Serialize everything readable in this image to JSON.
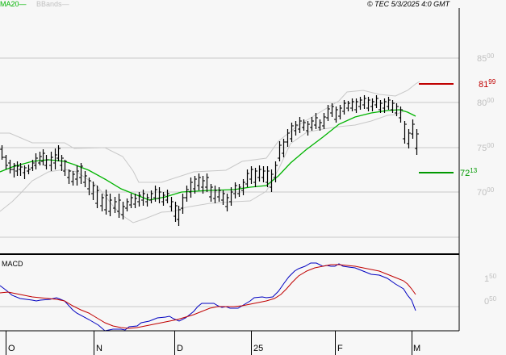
{
  "header": {
    "legend_ma": "MA20",
    "legend_ma_dash": "—",
    "legend_bbands": "BBands",
    "legend_bbands_dash": "—",
    "copyright": "© TEC 5/3/2025 4:0 GMT"
  },
  "price_axis": {
    "labels": [
      {
        "main": "85",
        "sup": "00",
        "y": 72
      },
      {
        "main": "80",
        "sup": "00",
        "y": 127
      },
      {
        "main": "75",
        "sup": "00",
        "y": 183
      },
      {
        "main": "70",
        "sup": "00",
        "y": 238
      }
    ],
    "resistance": {
      "main": "81",
      "sup": "99",
      "color": "#c00000"
    },
    "support": {
      "main": "72",
      "sup": "13",
      "color": "#009900"
    }
  },
  "macd_panel": {
    "title": "MACD",
    "labels": [
      {
        "main": "1",
        "sup": "50"
      },
      {
        "main": "0",
        "sup": "50"
      }
    ]
  },
  "x_axis": {
    "labels": [
      "O",
      "N",
      "D",
      "25",
      "F",
      "M"
    ]
  },
  "colors": {
    "background": "#f7f7f7",
    "grid": "#c8c8c8",
    "bars": "#000000",
    "ma20": "#00b400",
    "bbands": "#c8c8c8",
    "macd": "#0000c0",
    "signal": "#c00000",
    "resistance": "#c00000",
    "support": "#009900"
  },
  "chart_data": [
    {
      "type": "ohlc",
      "title": "Price with MA20 and Bollinger Bands",
      "xlabel": "",
      "ylabel": "",
      "ylim": [
        6500,
        8800
      ],
      "x_ticks": [
        "O",
        "N",
        "D",
        "25",
        "F",
        "M"
      ],
      "y_ticks": [
        7000,
        7500,
        8000,
        8500
      ],
      "grid": true,
      "legend": [
        "MA20",
        "BBands"
      ],
      "annotations": [
        {
          "label": "81.99",
          "value": 8199,
          "type": "resistance",
          "color": "#c00000"
        },
        {
          "label": "72.13",
          "value": 7213,
          "type": "support",
          "color": "#009900"
        }
      ],
      "series": [
        {
          "name": "MA20",
          "approx_values": [
            7330,
            7380,
            7420,
            7440,
            7450,
            7430,
            7360,
            7300,
            7250,
            7200,
            7120,
            7050,
            6990,
            6960,
            6960,
            6970,
            6970,
            6980,
            7000,
            7020,
            7020,
            7030,
            7050,
            7150,
            7330,
            7550,
            7730,
            7850,
            7900,
            7950,
            7980,
            7960,
            7900
          ]
        },
        {
          "name": "BBand Upper",
          "approx_values": [
            7850,
            7850,
            7790,
            7770,
            7770,
            7740,
            7650,
            7510,
            7430,
            7240,
            7080,
            7070,
            7160,
            7160,
            7170,
            7170,
            7200,
            7220,
            7230,
            7400,
            7660,
            7860,
            7950,
            7990,
            8030,
            8080,
            8060,
            8070,
            8200
          ]
        },
        {
          "name": "BBand Lower",
          "approx_values": [
            6820,
            6920,
            7080,
            7110,
            7110,
            7130,
            7050,
            6890,
            6760,
            6700,
            6700,
            6730,
            6770,
            6780,
            6780,
            6790,
            6800,
            6830,
            6850,
            6810,
            6680,
            6680,
            6820,
            7050,
            7240,
            7390,
            7500,
            7530,
            7600
          ]
        }
      ]
    },
    {
      "type": "line",
      "title": "MACD",
      "y_ticks": [
        0.5,
        1.5
      ],
      "series": [
        {
          "name": "MACD",
          "color": "#0000c0"
        },
        {
          "name": "Signal",
          "color": "#c00000"
        }
      ]
    }
  ]
}
